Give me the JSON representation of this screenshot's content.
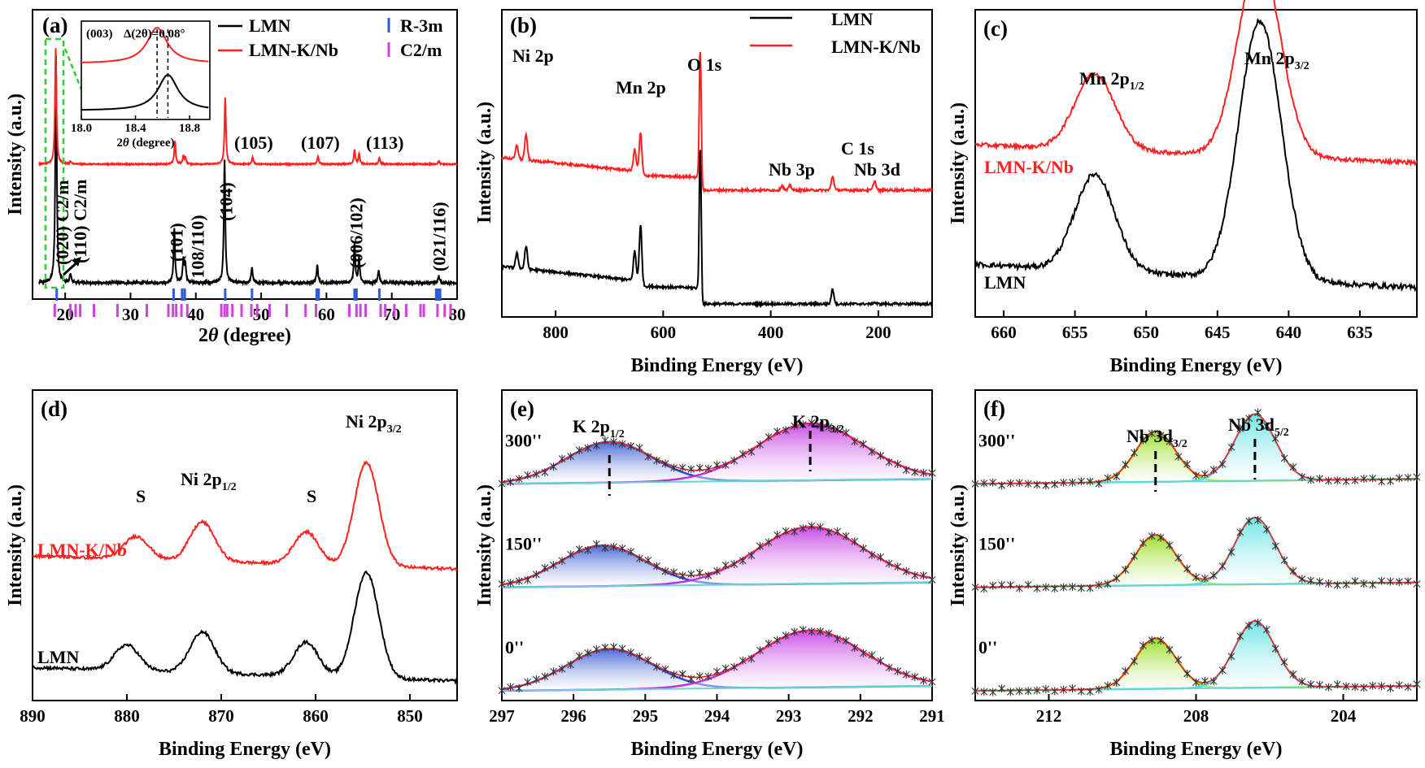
{
  "colors": {
    "lmn": "#000000",
    "lmn_knb": "#ff2020",
    "r3m": "#2e5bd8",
    "c2m": "#cc44dd",
    "inset_box": "#33cc33",
    "fit_envelope": "#ff2020",
    "k_low": "#2a4fd0",
    "k_high": "#c030e0",
    "nb_low": "#88d800",
    "nb_high": "#55e0e0",
    "baseline": "#60d8d8",
    "background": "#30c070"
  },
  "chart_data": [
    {
      "id": "a",
      "type": "line",
      "panel_label": "(a)",
      "xlabel_main": "2",
      "xlabel_italic": "θ",
      "xlabel_tail": " (degree)",
      "ylabel": "Intensity (a.u.)",
      "xlim": [
        15,
        80
      ],
      "x_ticks": [
        "20",
        "30",
        "40",
        "50",
        "60",
        "70",
        "80"
      ],
      "legend": [
        {
          "label": "LMN",
          "kind": "line",
          "color": "#000000"
        },
        {
          "label": "LMN-K/Nb",
          "kind": "line",
          "color": "#ff2020"
        },
        {
          "label": "R-3m",
          "kind": "tick",
          "color": "#2e5bd8"
        },
        {
          "label": "C2/m",
          "kind": "tick",
          "color": "#cc44dd"
        }
      ],
      "series": [
        {
          "name": "LMN",
          "peaks": [
            [
              18.6,
              10
            ],
            [
              20.8,
              0.4
            ],
            [
              36.7,
              2.4
            ],
            [
              38.1,
              1.0
            ],
            [
              38.4,
              0.8
            ],
            [
              44.4,
              5.4
            ],
            [
              48.6,
              0.7
            ],
            [
              58.6,
              0.8
            ],
            [
              64.3,
              1.7
            ],
            [
              65.0,
              1.1
            ],
            [
              68.0,
              0.6
            ],
            [
              77.2,
              0.3
            ]
          ]
        },
        {
          "name": "LMN-K/Nb",
          "peaks": [
            [
              18.55,
              13
            ],
            [
              20.8,
              0.3
            ],
            [
              36.8,
              2.6
            ],
            [
              38.1,
              0.9
            ],
            [
              38.4,
              0.7
            ],
            [
              44.5,
              7.5
            ],
            [
              48.7,
              0.8
            ],
            [
              58.7,
              0.9
            ],
            [
              64.3,
              1.6
            ],
            [
              65.0,
              1.2
            ],
            [
              68.1,
              0.7
            ],
            [
              77.2,
              0.35
            ]
          ]
        }
      ],
      "reference_ticks": {
        "R-3m": [
          18.7,
          36.6,
          37.9,
          38.3,
          44.5,
          48.6,
          58.5,
          58.8,
          64.3,
          64.6,
          68.1,
          76.8,
          77.1,
          77.4
        ],
        "C2/m": [
          18.4,
          20.8,
          21.6,
          22.3,
          24.4,
          28.0,
          32.5,
          35.8,
          36.5,
          37.0,
          37.8,
          38.7,
          43.9,
          44.4,
          44.8,
          45.6,
          47.0,
          48.5,
          49.4,
          51.3,
          53.9,
          56.8,
          58.4,
          63.5,
          64.6,
          65.2,
          66.0,
          68.3,
          69.0,
          70.4,
          72.2,
          74.4,
          74.9,
          77.0,
          78.1,
          79.0
        ]
      },
      "annotations": [
        "(020) C2/m",
        "(110) C2/m",
        "(101)",
        "(108/110)",
        "(104)",
        "(105)",
        "(107)",
        "(006/102)",
        "(113)",
        "(021/116)"
      ],
      "inset": {
        "label": "(003)",
        "delta_text": "Δ(2θ)=0.08°",
        "x_ticks": [
          "18.0",
          "18.4",
          "18.8"
        ],
        "xlim": [
          18.0,
          18.95
        ],
        "xlabel_main": "2",
        "xlabel_italic": "θ",
        "xlabel_tail": " (degree)",
        "peak_red": 18.56,
        "peak_black": 18.64
      }
    },
    {
      "id": "b",
      "type": "line",
      "panel_label": "(b)",
      "xlabel": "Binding Energy (eV)",
      "ylabel": "Intensity (a.u.)",
      "xlim": [
        900,
        100
      ],
      "x_ticks": [
        "800",
        "600",
        "400",
        "200"
      ],
      "legend": [
        {
          "label": "LMN",
          "color": "#000000"
        },
        {
          "label": "LMN-K/Nb",
          "color": "#ff2020"
        }
      ],
      "annotations": [
        "Ni 2p",
        "Mn 2p",
        "O 1s",
        "Nb 3p",
        "C 1s",
        "Nb 3d"
      ],
      "series": [
        {
          "name": "LMN",
          "peaks": [
            [
              855,
              1.4
            ],
            [
              872,
              0.9
            ],
            [
              642,
              3.4
            ],
            [
              653,
              1.8
            ],
            [
              531,
              9.5
            ],
            [
              285,
              0.9
            ],
            [
              207,
              0.1
            ]
          ]
        },
        {
          "name": "LMN-K/Nb",
          "peaks": [
            [
              855,
              1.6
            ],
            [
              872,
              0.9
            ],
            [
              642,
              2.5
            ],
            [
              653,
              1.4
            ],
            [
              531,
              9.0
            ],
            [
              379,
              0.3
            ],
            [
              364,
              0.3
            ],
            [
              285,
              0.9
            ],
            [
              207,
              0.6
            ]
          ]
        }
      ]
    },
    {
      "id": "c",
      "type": "line",
      "panel_label": "(c)",
      "xlabel": "Binding Energy (eV)",
      "ylabel": "Intensity (a.u.)",
      "xlim": [
        662,
        631
      ],
      "x_ticks": [
        "660",
        "655",
        "650",
        "645",
        "640",
        "635"
      ],
      "annotations": {
        "low_main": "Mn 2p",
        "low_sub": "1/2",
        "high_main": "Mn 2p",
        "high_sub": "3/2"
      },
      "series": [
        {
          "name": "LMN-K/Nb",
          "label": "LMN-K/Nb",
          "peaks": [
            [
              653.6,
              1.7
            ],
            [
              642.5,
              2.6
            ],
            [
              641.5,
              2.1
            ]
          ]
        },
        {
          "name": "LMN",
          "label": "LMN",
          "peaks": [
            [
              653.6,
              1.65
            ],
            [
              642.5,
              2.4
            ],
            [
              641.5,
              2.3
            ]
          ]
        }
      ]
    },
    {
      "id": "d",
      "type": "line",
      "panel_label": "(d)",
      "xlabel": "Binding Energy (eV)",
      "ylabel": "Intensity (a.u.)",
      "xlim": [
        890,
        845
      ],
      "x_ticks": [
        "890",
        "880",
        "870",
        "860",
        "850"
      ],
      "annotations": {
        "sat_label": "S",
        "low_main": "Ni 2p",
        "low_sub": "1/2",
        "high_main": "Ni 2p",
        "high_sub": "3/2"
      },
      "series": [
        {
          "name": "LMN-K/Nb",
          "label": "LMN-K/Nb",
          "peaks": [
            [
              879,
              0.7
            ],
            [
              872,
              1.2
            ],
            [
              861,
              1.0
            ],
            [
              854.6,
              3.2
            ]
          ]
        },
        {
          "name": "LMN",
          "label": "LMN",
          "peaks": [
            [
              880,
              0.75
            ],
            [
              872,
              1.2
            ],
            [
              861,
              1.0
            ],
            [
              854.6,
              3.1
            ]
          ]
        }
      ]
    },
    {
      "id": "e",
      "type": "area",
      "panel_label": "(e)",
      "xlabel": "Binding Energy (eV)",
      "ylabel": "Intensity (a.u.)",
      "xlim": [
        297,
        291
      ],
      "x_ticks": [
        "297",
        "296",
        "295",
        "294",
        "293",
        "292",
        "291"
      ],
      "annotations": {
        "low_main": "K 2p",
        "low_sub": "1/2",
        "high_main": "K 2p",
        "high_sub": "3/2"
      },
      "series": [
        {
          "name": "300''",
          "label": "300''",
          "k2p12": 295.5,
          "k2p32": 292.7
        },
        {
          "name": "150''",
          "label": "150''",
          "k2p12": 295.6,
          "k2p32": 292.7
        },
        {
          "name": "0''",
          "label": "0''",
          "k2p12": 295.5,
          "k2p32": 292.7
        }
      ]
    },
    {
      "id": "f",
      "type": "area",
      "panel_label": "(f)",
      "xlabel": "Binding Energy (eV)",
      "ylabel": "Intensity (a.u.)",
      "xlim": [
        214,
        202
      ],
      "x_ticks": [
        "212",
        "208",
        "204"
      ],
      "annotations": {
        "low_main": "Nb 3d",
        "low_sub": "3/2",
        "high_main": "Nb 3d",
        "high_sub": "5/2"
      },
      "series": [
        {
          "name": "300''",
          "label": "300''",
          "nb3d32": 209.1,
          "nb3d52": 206.4
        },
        {
          "name": "150''",
          "label": "150''",
          "nb3d32": 209.1,
          "nb3d52": 206.4
        },
        {
          "name": "0''",
          "label": "0''",
          "nb3d32": 209.1,
          "nb3d52": 206.4
        }
      ]
    }
  ]
}
